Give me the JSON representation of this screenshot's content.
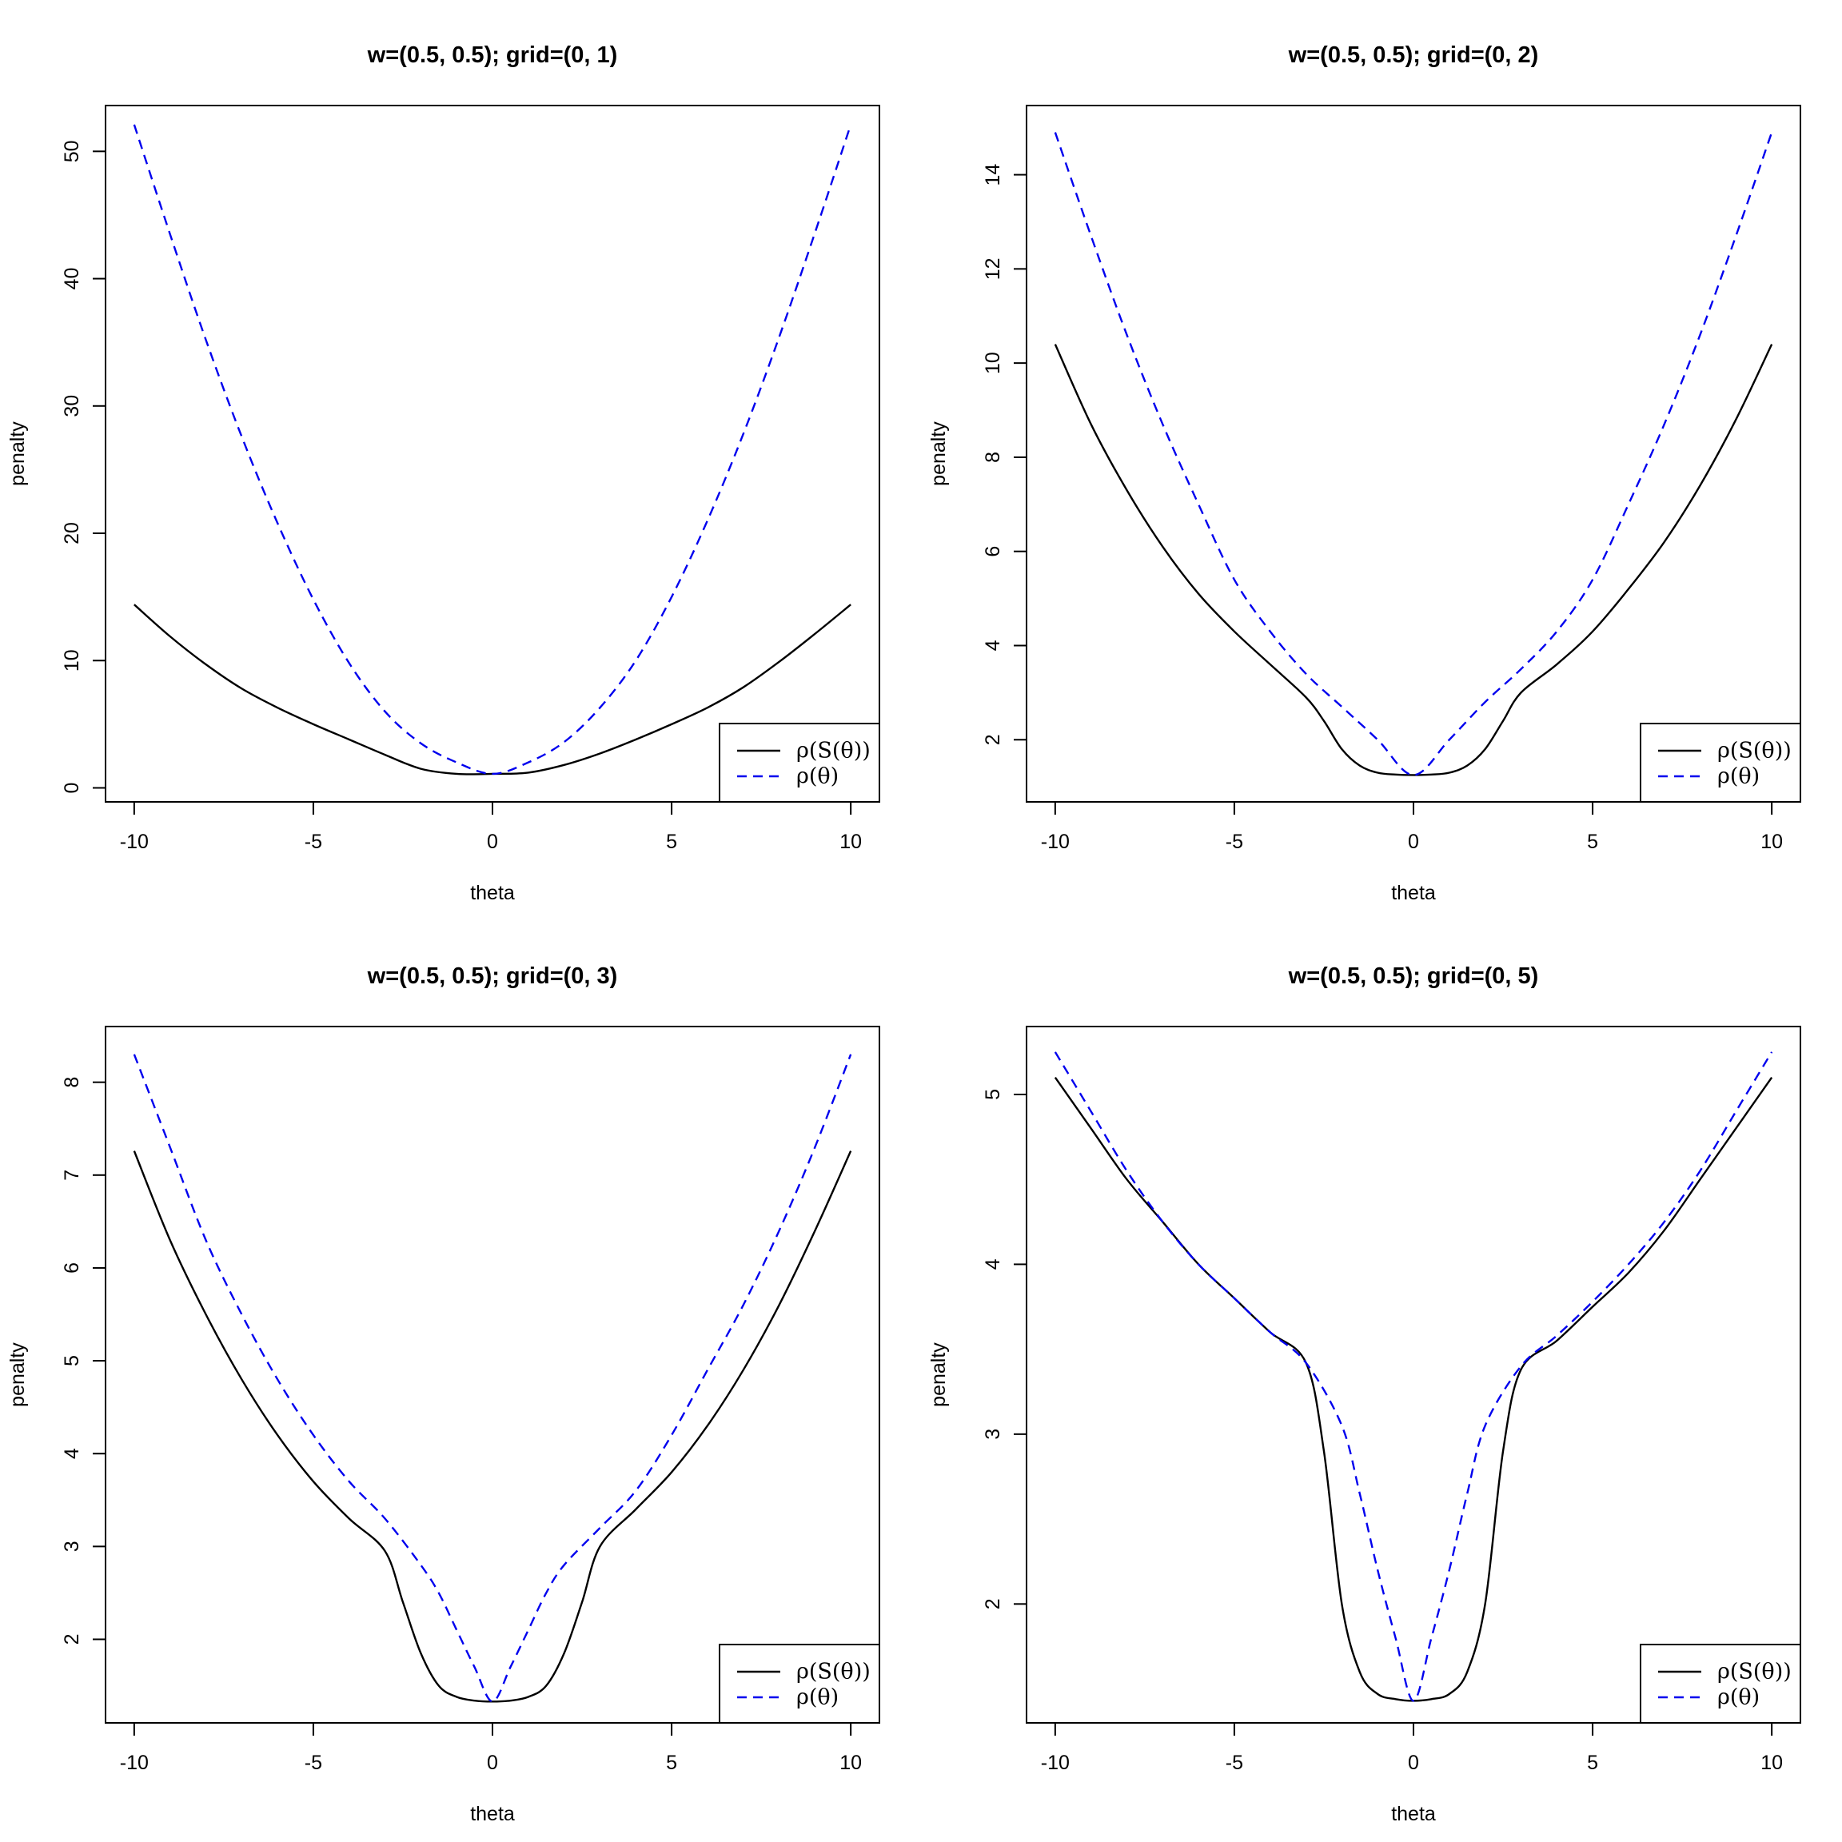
{
  "chart_data": [
    {
      "type": "line",
      "title": "w=(0.5, 0.5); grid=(0, 1)",
      "xlabel": "theta",
      "ylabel": "penalty",
      "xlim": [
        -10.8,
        10.8
      ],
      "ylim": [
        -1.1,
        53.6
      ],
      "xticks": [
        -10,
        -5,
        0,
        5,
        10
      ],
      "xtick_labels": [
        "-10",
        "-5",
        "0",
        "5",
        "10"
      ],
      "yticks": [
        0,
        10,
        20,
        30,
        40,
        50
      ],
      "ytick_labels": [
        "0",
        "10",
        "20",
        "30",
        "40",
        "50"
      ],
      "legend": {
        "position": "bottom-right",
        "entries": [
          "ρ(S(θ))",
          "ρ(θ)"
        ]
      },
      "series": [
        {
          "name": "ρ(S(θ))",
          "color": "#000000",
          "dash": "solid",
          "x": [
            -10,
            -9,
            -8,
            -7,
            -6,
            -5,
            -4,
            -3,
            -2,
            -1,
            0,
            1,
            2,
            3,
            4,
            5,
            6,
            7,
            8,
            9,
            10
          ],
          "y": [
            14.4,
            11.9,
            9.7,
            7.8,
            6.3,
            5.0,
            3.8,
            2.6,
            1.5,
            1.1,
            1.1,
            1.2,
            1.8,
            2.7,
            3.8,
            5.0,
            6.3,
            7.9,
            9.9,
            12.1,
            14.4
          ]
        },
        {
          "name": "ρ(θ)",
          "color": "#0000ee",
          "dash": "dashed",
          "x": [
            -10,
            -9,
            -8,
            -7,
            -6,
            -5,
            -4,
            -3,
            -2,
            -1,
            0,
            1,
            2,
            3,
            4,
            5,
            6,
            7,
            8,
            9,
            10
          ],
          "y": [
            52.1,
            43.5,
            35.2,
            27.6,
            20.8,
            14.8,
            9.8,
            6.0,
            3.5,
            2.0,
            1.1,
            2.0,
            3.6,
            6.3,
            10.0,
            15.0,
            21.0,
            27.8,
            35.4,
            43.6,
            52.1
          ]
        }
      ]
    },
    {
      "type": "line",
      "title": "w=(0.5, 0.5); grid=(0, 2)",
      "xlabel": "theta",
      "ylabel": "penalty",
      "xlim": [
        -10.8,
        10.8
      ],
      "ylim": [
        0.68,
        15.47
      ],
      "xticks": [
        -10,
        -5,
        0,
        5,
        10
      ],
      "xtick_labels": [
        "-10",
        "-5",
        "0",
        "5",
        "10"
      ],
      "yticks": [
        2,
        4,
        6,
        8,
        10,
        12,
        14
      ],
      "ytick_labels": [
        "2",
        "4",
        "6",
        "8",
        "10",
        "12",
        "14"
      ],
      "legend": {
        "position": "bottom-right",
        "entries": [
          "ρ(S(θ))",
          "ρ(θ)"
        ]
      },
      "series": [
        {
          "name": "ρ(S(θ))",
          "color": "#000000",
          "dash": "solid",
          "x": [
            -10,
            -9,
            -8,
            -7,
            -6,
            -5,
            -4,
            -3,
            -2.5,
            -2,
            -1.5,
            -1,
            -0.5,
            0,
            0.5,
            1,
            1.5,
            2,
            2.5,
            3,
            4,
            5,
            6,
            7,
            8,
            9,
            10
          ],
          "y": [
            10.4,
            8.7,
            7.3,
            6.1,
            5.1,
            4.3,
            3.6,
            2.9,
            2.4,
            1.8,
            1.45,
            1.3,
            1.26,
            1.25,
            1.26,
            1.3,
            1.45,
            1.8,
            2.4,
            3.0,
            3.6,
            4.3,
            5.2,
            6.2,
            7.4,
            8.8,
            10.4
          ]
        },
        {
          "name": "ρ(θ)",
          "color": "#0000ee",
          "dash": "dashed",
          "x": [
            -10,
            -9,
            -8,
            -7,
            -6,
            -5,
            -4,
            -3,
            -2,
            -1,
            0,
            1,
            2,
            3,
            4,
            5,
            6,
            7,
            8,
            9,
            10
          ],
          "y": [
            14.9,
            12.7,
            10.6,
            8.7,
            7.0,
            5.4,
            4.3,
            3.4,
            2.7,
            2.0,
            1.25,
            2.0,
            2.8,
            3.5,
            4.3,
            5.4,
            7.0,
            8.7,
            10.6,
            12.7,
            14.9
          ]
        }
      ]
    },
    {
      "type": "line",
      "title": "w=(0.5, 0.5); grid=(0, 3)",
      "xlabel": "theta",
      "ylabel": "penalty",
      "xlim": [
        -10.8,
        10.8
      ],
      "ylim": [
        1.1,
        8.6
      ],
      "xticks": [
        -10,
        -5,
        0,
        5,
        10
      ],
      "xtick_labels": [
        "-10",
        "-5",
        "0",
        "5",
        "10"
      ],
      "yticks": [
        2,
        3,
        4,
        5,
        6,
        7,
        8
      ],
      "ytick_labels": [
        "2",
        "3",
        "4",
        "5",
        "6",
        "7",
        "8"
      ],
      "legend": {
        "position": "bottom-right",
        "entries": [
          "ρ(S(θ))",
          "ρ(θ)"
        ]
      },
      "series": [
        {
          "name": "ρ(S(θ))",
          "color": "#000000",
          "dash": "solid",
          "x": [
            -10,
            -9,
            -8,
            -7,
            -6,
            -5,
            -4,
            -3,
            -2.5,
            -2,
            -1.5,
            -1,
            -0.5,
            0,
            0.5,
            1,
            1.5,
            2,
            2.5,
            3,
            4,
            5,
            6,
            7,
            8,
            9,
            10
          ],
          "y": [
            7.26,
            6.3,
            5.5,
            4.8,
            4.2,
            3.7,
            3.3,
            2.95,
            2.4,
            1.85,
            1.5,
            1.38,
            1.34,
            1.33,
            1.34,
            1.38,
            1.5,
            1.85,
            2.4,
            3.0,
            3.4,
            3.8,
            4.3,
            4.9,
            5.6,
            6.4,
            7.26
          ]
        },
        {
          "name": "ρ(θ)",
          "color": "#0000ee",
          "dash": "dashed",
          "x": [
            -10,
            -9,
            -8,
            -7,
            -6,
            -5,
            -4,
            -3,
            -2,
            -1.5,
            -1,
            -0.5,
            0,
            0.5,
            1,
            1.5,
            2,
            3,
            4,
            5,
            6,
            7,
            8,
            9,
            10
          ],
          "y": [
            8.3,
            7.3,
            6.3,
            5.5,
            4.8,
            4.2,
            3.7,
            3.3,
            2.8,
            2.5,
            2.1,
            1.7,
            1.33,
            1.7,
            2.1,
            2.5,
            2.8,
            3.2,
            3.6,
            4.2,
            4.9,
            5.6,
            6.4,
            7.3,
            8.3
          ]
        }
      ]
    },
    {
      "type": "line",
      "title": "w=(0.5, 0.5); grid=(0, 5)",
      "xlabel": "theta",
      "ylabel": "penalty",
      "xlim": [
        -10.8,
        10.8
      ],
      "ylim": [
        1.3,
        5.4
      ],
      "xticks": [
        -10,
        -5,
        0,
        5,
        10
      ],
      "xtick_labels": [
        "-10",
        "-5",
        "0",
        "5",
        "10"
      ],
      "yticks": [
        2,
        3,
        4,
        5
      ],
      "ytick_labels": [
        "2",
        "3",
        "4",
        "5"
      ],
      "legend": {
        "position": "bottom-right",
        "entries": [
          "ρ(S(θ))",
          "ρ(θ)"
        ]
      },
      "series": [
        {
          "name": "ρ(S(θ))",
          "color": "#000000",
          "dash": "solid",
          "x": [
            -10,
            -9,
            -8,
            -7,
            -6,
            -5,
            -4,
            -3,
            -2.5,
            -2,
            -1.5,
            -1,
            -0.5,
            0,
            0.5,
            1,
            1.5,
            2,
            2.5,
            3,
            4,
            5,
            6,
            7,
            8,
            9,
            10
          ],
          "y": [
            5.1,
            4.8,
            4.5,
            4.25,
            4.0,
            3.8,
            3.6,
            3.42,
            2.9,
            2.0,
            1.6,
            1.47,
            1.44,
            1.43,
            1.44,
            1.47,
            1.6,
            2.0,
            2.9,
            3.38,
            3.55,
            3.75,
            3.95,
            4.2,
            4.5,
            4.8,
            5.1
          ]
        },
        {
          "name": "ρ(θ)",
          "color": "#0000ee",
          "dash": "dashed",
          "x": [
            -10,
            -9,
            -8,
            -7,
            -6,
            -5,
            -4,
            -3,
            -2,
            -1.5,
            -1,
            -0.5,
            0,
            0.5,
            1,
            1.5,
            2,
            3,
            4,
            5,
            6,
            7,
            8,
            9,
            10
          ],
          "y": [
            5.25,
            4.9,
            4.55,
            4.25,
            4.0,
            3.8,
            3.6,
            3.42,
            3.05,
            2.65,
            2.2,
            1.8,
            1.43,
            1.8,
            2.2,
            2.65,
            3.05,
            3.4,
            3.58,
            3.78,
            4.0,
            4.25,
            4.55,
            4.9,
            5.25
          ]
        }
      ]
    }
  ]
}
